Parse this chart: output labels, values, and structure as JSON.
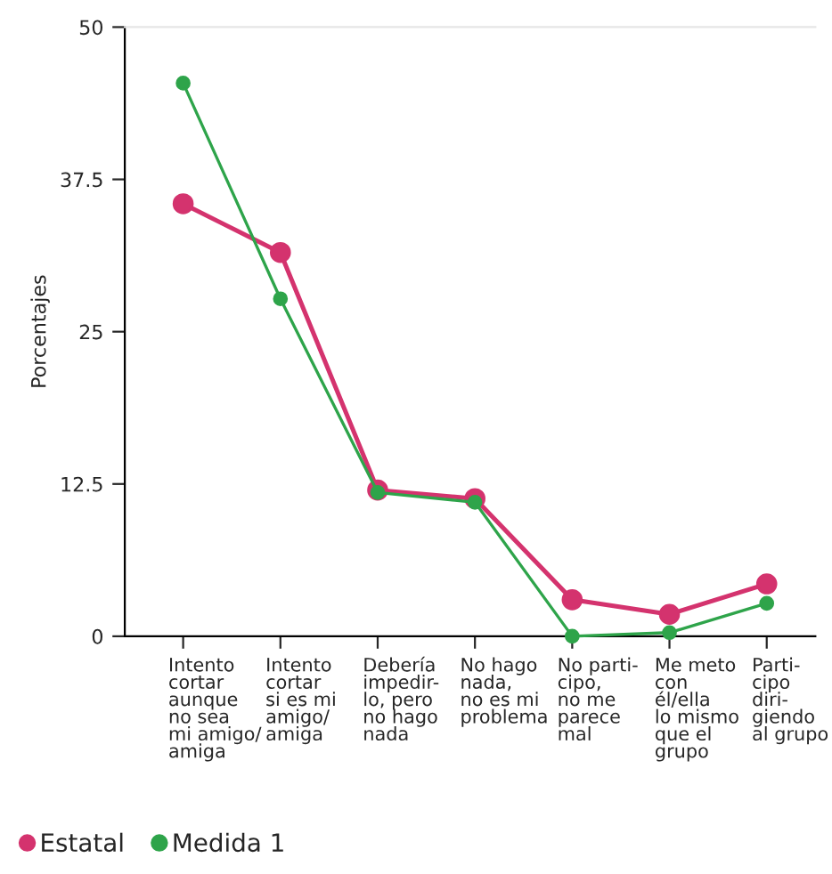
{
  "chart_data": {
    "type": "line",
    "ylabel": "Porcentajes",
    "categories": [
      "Intento\ncortar\naunque\nno sea\nmi amigo/\namiga",
      "Intento\ncortar\nsi es mi\namigo/\namiga",
      "Debería\nimpedir-\nlo, pero\nno hago\nnada",
      "No hago\nnada,\nno es mi\nproblema",
      "No parti-\ncipo,\nno me\nparece\nmal",
      "Me meto\ncon\nél/ella\nlo mismo\nque el\ngrupo",
      "Parti-\ncipo\ndiri-\ngiendo\nal grupo"
    ],
    "series": [
      {
        "name": "Estatal",
        "color": "#d4336e",
        "values": [
          35.5,
          31.5,
          12.0,
          11.3,
          3.0,
          1.8,
          4.3
        ]
      },
      {
        "name": "Medida 1",
        "color": "#2ea44a",
        "values": [
          45.4,
          27.7,
          11.8,
          11.0,
          0,
          0.3,
          2.7
        ]
      }
    ],
    "ylim": [
      0,
      50
    ],
    "yticks": [
      0,
      37.5,
      25,
      12.5,
      50
    ],
    "marker": "circle",
    "line_style": "solid",
    "legend": "bottom left",
    "grid": false
  }
}
